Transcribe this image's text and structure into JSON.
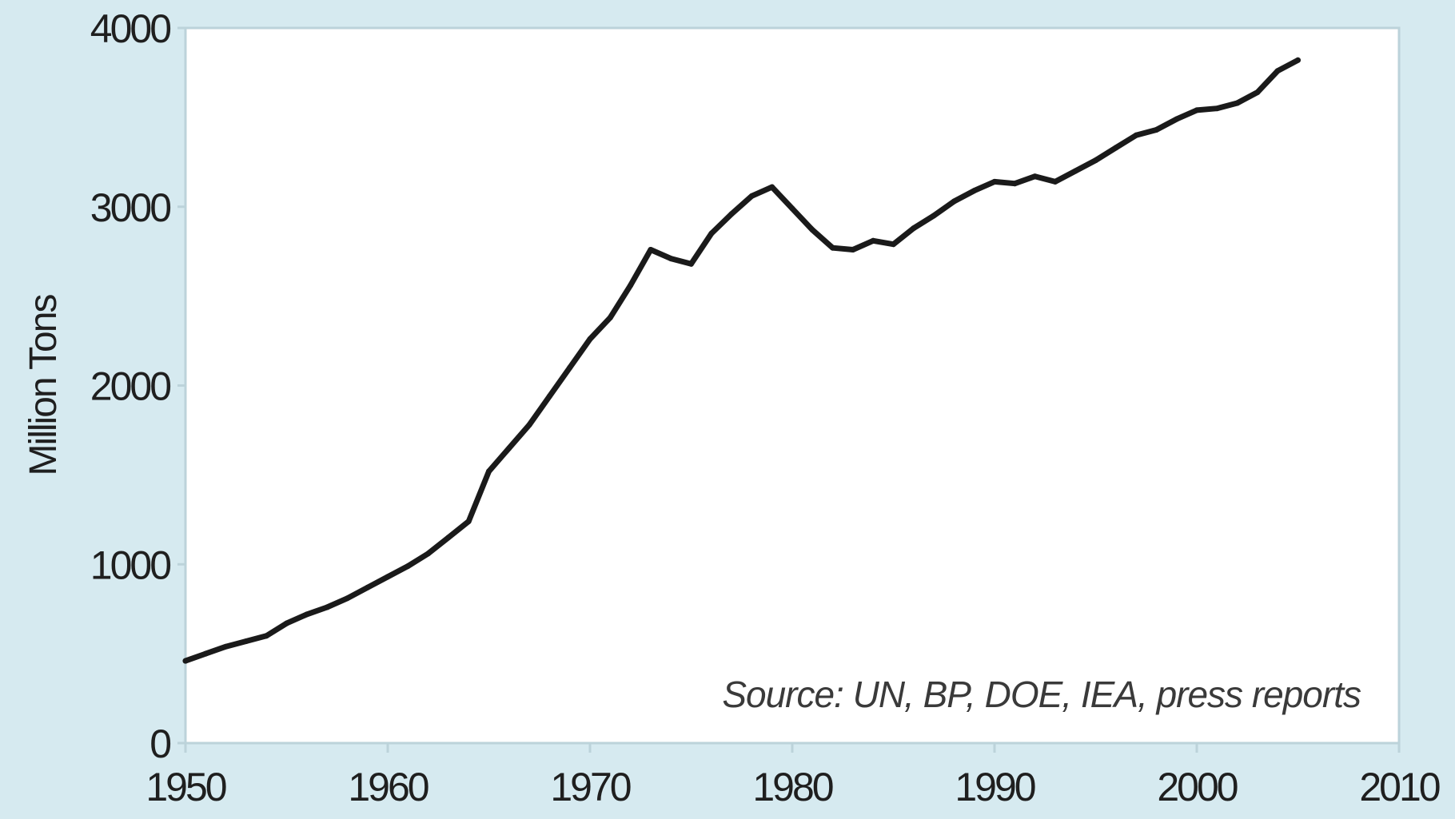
{
  "chart_data": {
    "type": "line",
    "title": "",
    "xlabel": "",
    "ylabel": "Million Tons",
    "xlim": [
      1950,
      2010
    ],
    "ylim": [
      0,
      4000
    ],
    "x_ticks": [
      1950,
      1960,
      1970,
      1980,
      1990,
      2000,
      2010
    ],
    "y_ticks": [
      0,
      1000,
      2000,
      3000,
      4000
    ],
    "grid": false,
    "source_note": "Source: UN, BP, DOE, IEA, press reports",
    "colors": {
      "background": "#d6eaf0",
      "plot_area": "#ffffff",
      "line": "#1a1a1a",
      "axis": "#bcd3da"
    },
    "series": [
      {
        "x": [
          1950,
          1951,
          1952,
          1953,
          1954,
          1955,
          1956,
          1957,
          1958,
          1959,
          1960,
          1961,
          1962,
          1963,
          1964,
          1965,
          1966,
          1967,
          1968,
          1969,
          1970,
          1971,
          1972,
          1973,
          1974,
          1975,
          1976,
          1977,
          1978,
          1979,
          1980,
          1981,
          1982,
          1983,
          1984,
          1985,
          1986,
          1987,
          1988,
          1989,
          1990,
          1991,
          1992,
          1993,
          1994,
          1995,
          1996,
          1997,
          1998,
          1999,
          2000,
          2001,
          2002,
          2003,
          2004,
          2005
        ],
        "y": [
          460,
          500,
          540,
          570,
          600,
          670,
          720,
          760,
          810,
          870,
          930,
          990,
          1060,
          1150,
          1240,
          1520,
          1650,
          1780,
          1940,
          2100,
          2260,
          2380,
          2560,
          2760,
          2710,
          2680,
          2850,
          2960,
          3060,
          3110,
          2990,
          2870,
          2770,
          2760,
          2810,
          2790,
          2880,
          2950,
          3030,
          3090,
          3140,
          3130,
          3170,
          3140,
          3200,
          3260,
          3330,
          3400,
          3430,
          3490,
          3540,
          3550,
          3580,
          3640,
          3760,
          3820
        ]
      }
    ]
  }
}
